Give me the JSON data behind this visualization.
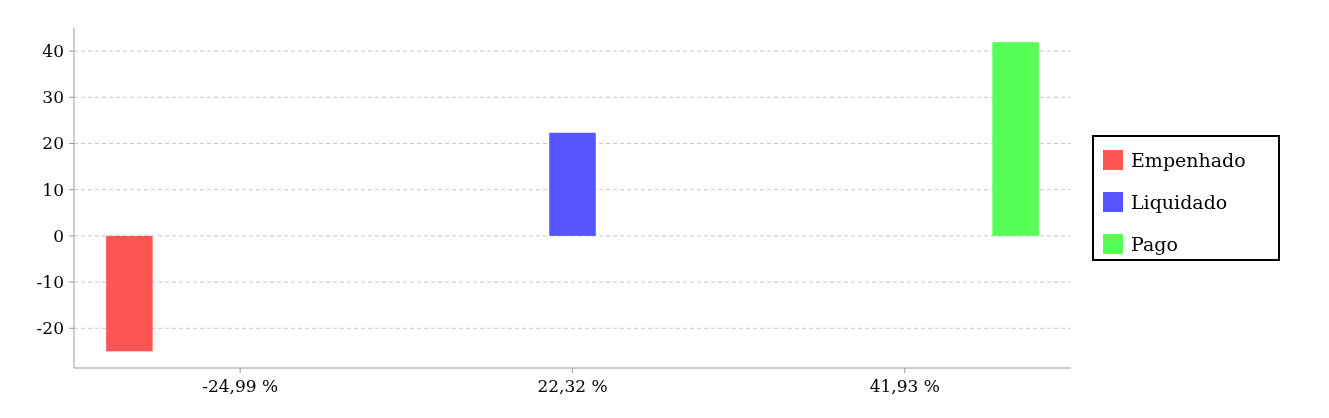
{
  "chart_data": {
    "type": "bar",
    "categories": [
      "-24,99 %",
      "22,32 %",
      "41,93 %"
    ],
    "series": [
      {
        "name": "Empenhado",
        "color": "#ff5555",
        "values": [
          -24.99,
          null,
          null
        ]
      },
      {
        "name": "Liquidado",
        "color": "#5555ff",
        "values": [
          null,
          22.32,
          null
        ]
      },
      {
        "name": "Pago",
        "color": "#55ff55",
        "values": [
          null,
          null,
          41.93
        ]
      }
    ],
    "ylim": [
      -28.6,
      45
    ],
    "yticks": [
      -20,
      -10,
      0,
      10,
      20,
      30,
      40
    ],
    "grid": "y",
    "legend": "right"
  }
}
